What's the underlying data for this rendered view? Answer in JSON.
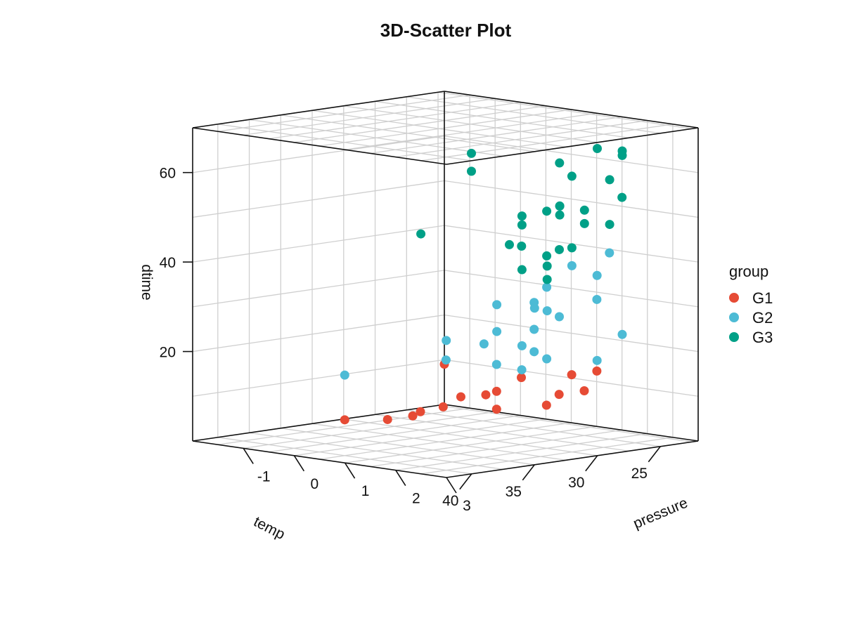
{
  "chart_data": {
    "type": "scatter",
    "title": "3D-Scatter Plot",
    "axes": {
      "temp": {
        "label": "temp",
        "range": [
          22,
          42
        ],
        "ticks": [
          25,
          30,
          35,
          40
        ]
      },
      "pressure": {
        "label": "pressure",
        "range": [
          -2,
          3
        ],
        "ticks": [
          -1,
          0,
          1,
          2,
          3
        ]
      },
      "dtime": {
        "label": "dtime",
        "range": [
          0,
          70
        ],
        "ticks": [
          20,
          40,
          60
        ]
      }
    },
    "grid": true,
    "legend": {
      "title": "group",
      "placement": "right"
    },
    "series": [
      {
        "name": "G1",
        "color": "#E64B35",
        "points": [
          [
            22.0,
            -2.0,
            9.0
          ],
          [
            24.0,
            1.5,
            14.0
          ],
          [
            25.0,
            1.5,
            10.0
          ],
          [
            26.0,
            1.5,
            14.0
          ],
          [
            27.0,
            1.5,
            10.0
          ],
          [
            28.0,
            1.5,
            8.0
          ],
          [
            30.0,
            1.5,
            15.0
          ],
          [
            30.0,
            0.8,
            10.0
          ],
          [
            35.0,
            1.2,
            10.0
          ],
          [
            34.0,
            1.3,
            12.0
          ],
          [
            36.0,
            2.5,
            12.0
          ],
          [
            36.0,
            2.5,
            16.0
          ],
          [
            36.0,
            1.0,
            9.0
          ],
          [
            35.0,
            0.6,
            7.0
          ],
          [
            37.0,
            0.6,
            7.0
          ],
          [
            40.0,
            0.5,
            8.0
          ]
        ]
      },
      {
        "name": "G2",
        "color": "#4DBBD5",
        "points": [
          [
            23.0,
            1.5,
            40.0
          ],
          [
            24.0,
            1.5,
            30.0
          ],
          [
            24.0,
            2.0,
            23.0
          ],
          [
            26.0,
            2.0,
            37.0
          ],
          [
            26.0,
            2.0,
            18.0
          ],
          [
            28.0,
            2.0,
            40.0
          ],
          [
            29.0,
            2.0,
            29.0
          ],
          [
            30.0,
            2.0,
            36.0
          ],
          [
            31.0,
            2.0,
            33.0
          ],
          [
            31.0,
            2.0,
            27.0
          ],
          [
            31.0,
            2.0,
            22.0
          ],
          [
            30.0,
            2.0,
            20.0
          ],
          [
            34.0,
            3.0,
            34.0
          ],
          [
            35.0,
            3.0,
            35.0
          ],
          [
            34.0,
            2.5,
            20.0
          ],
          [
            36.0,
            3.0,
            27.0
          ],
          [
            36.0,
            2.5,
            22.0
          ],
          [
            37.0,
            2.5,
            27.0
          ],
          [
            38.0,
            3.0,
            37.0
          ],
          [
            38.0,
            3.0,
            31.0
          ],
          [
            38.0,
            2.0,
            23.0
          ],
          [
            40.0,
            2.5,
            29.0
          ],
          [
            40.0,
            0.5,
            18.0
          ]
        ]
      },
      {
        "name": "G3",
        "color": "#00A087",
        "points": [
          [
            22.0,
            1.5,
            52.0
          ],
          [
            24.0,
            2.0,
            64.0
          ],
          [
            24.0,
            2.0,
            63.0
          ],
          [
            25.0,
            2.0,
            58.0
          ],
          [
            25.0,
            2.0,
            48.0
          ],
          [
            27.0,
            2.0,
            52.0
          ],
          [
            27.0,
            2.0,
            49.0
          ],
          [
            28.0,
            2.5,
            67.0
          ],
          [
            28.0,
            2.0,
            60.0
          ],
          [
            28.0,
            2.0,
            44.0
          ],
          [
            29.0,
            2.0,
            44.0
          ],
          [
            31.0,
            2.5,
            65.0
          ],
          [
            30.0,
            2.0,
            53.0
          ],
          [
            30.0,
            2.0,
            43.0
          ],
          [
            32.0,
            2.0,
            46.0
          ],
          [
            33.0,
            3.0,
            57.0
          ],
          [
            33.0,
            3.0,
            57.0
          ],
          [
            33.0,
            3.0,
            55.0
          ],
          [
            34.0,
            3.0,
            44.0
          ],
          [
            34.0,
            3.0,
            41.0
          ],
          [
            36.0,
            3.0,
            56.0
          ],
          [
            36.0,
            3.0,
            54.0
          ],
          [
            36.0,
            3.0,
            44.0
          ],
          [
            37.0,
            3.0,
            50.0
          ],
          [
            38.0,
            2.5,
            70.0
          ],
          [
            38.0,
            2.5,
            66.0
          ],
          [
            40.0,
            2.0,
            52.0
          ]
        ]
      }
    ]
  }
}
